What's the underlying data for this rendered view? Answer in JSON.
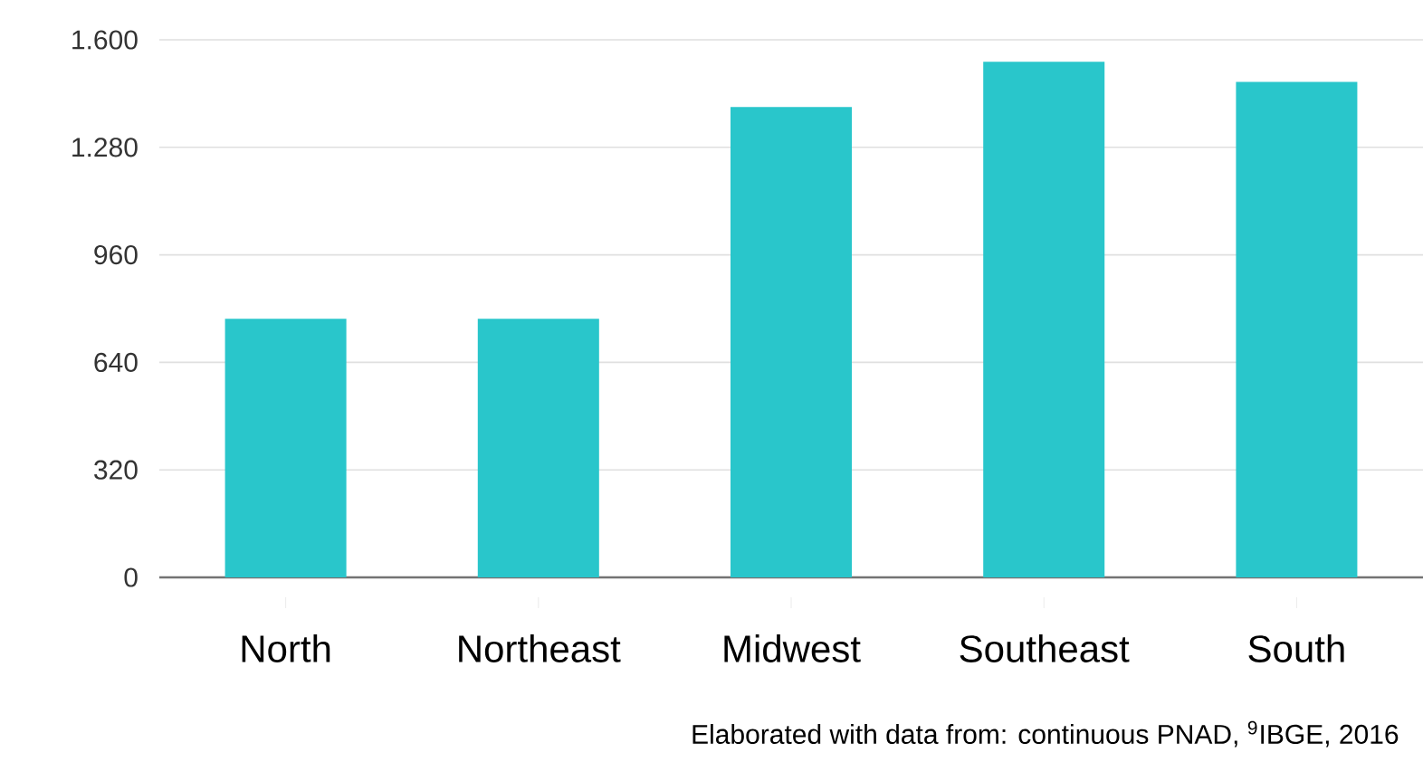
{
  "chart_data": {
    "type": "bar",
    "categories": [
      "North",
      "Northeast",
      "Midwest",
      "Southeast",
      "South"
    ],
    "values": [
      770,
      770,
      1400,
      1535,
      1475
    ],
    "color": "#29c6cb",
    "ylim": [
      0,
      1600
    ],
    "yticks": [
      0,
      320,
      640,
      960,
      {
        "value": 1280,
        "label": "1.280"
      },
      {
        "value": 1600,
        "label": "1.600"
      }
    ],
    "grid": "y",
    "annotations": [
      "Elaborated with data from: continuous PNAD, $^{9}$IBGE, 2016"
    ]
  }
}
